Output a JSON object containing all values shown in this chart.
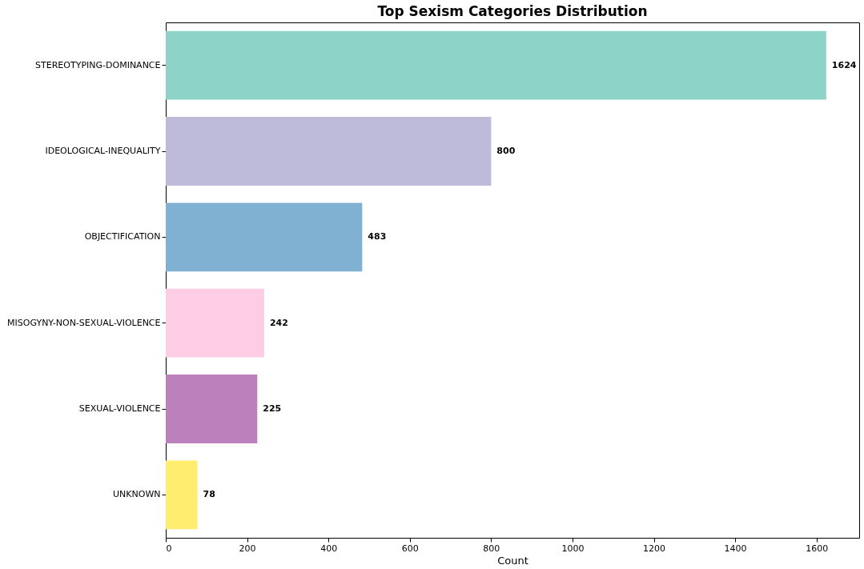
{
  "chart_data": {
    "type": "bar",
    "orientation": "horizontal",
    "title": "Top Sexism Categories Distribution",
    "xlabel": "Count",
    "categories": [
      "STEREOTYPING-DOMINANCE",
      "IDEOLOGICAL-INEQUALITY",
      "OBJECTIFICATION",
      "MISOGYNY-NON-SEXUAL-VIOLENCE",
      "SEXUAL-VIOLENCE",
      "UNKNOWN"
    ],
    "values": [
      1624,
      800,
      483,
      242,
      225,
      78
    ],
    "colors": [
      "#8dd3c7",
      "#bebada",
      "#80b1d3",
      "#fccde5",
      "#bc80bd",
      "#ffed6f"
    ],
    "xlim": [
      0,
      1705
    ],
    "xticks": [
      0,
      200,
      400,
      600,
      800,
      1000,
      1200,
      1400,
      1600
    ],
    "data_labels": true,
    "grid": false,
    "legend": false
  }
}
